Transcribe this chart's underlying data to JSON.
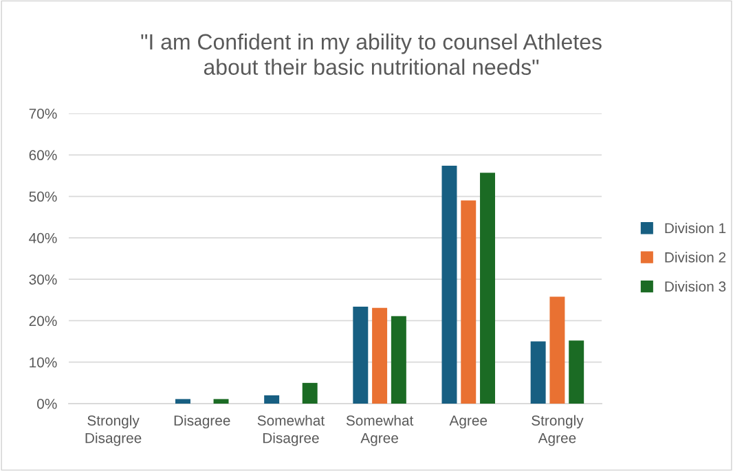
{
  "chart_data": {
    "type": "bar",
    "title": "\"I am Confident in my ability to counsel Athletes\nabout their basic nutritional needs\"",
    "categories": [
      "Strongly\nDisagree",
      "Disagree",
      "Somewhat\nDisagree",
      "Somewhat\nAgree",
      "Agree",
      "Strongly\nAgree"
    ],
    "series": [
      {
        "name": "Division 1",
        "color": "#175f82",
        "values": [
          0,
          1.1,
          2.0,
          23.4,
          57.4,
          15.0
        ]
      },
      {
        "name": "Division 2",
        "color": "#e97132",
        "values": [
          0,
          0,
          0,
          23.1,
          49.0,
          25.8
        ]
      },
      {
        "name": "Division 3",
        "color": "#1b6b24",
        "values": [
          0,
          1.1,
          5.0,
          21.1,
          55.7,
          15.2
        ]
      }
    ],
    "ylim": [
      0,
      70
    ],
    "yticks": [
      {
        "value": 0,
        "label": "0%"
      },
      {
        "value": 10,
        "label": "10%"
      },
      {
        "value": 20,
        "label": "20%"
      },
      {
        "value": 30,
        "label": "30%"
      },
      {
        "value": 40,
        "label": "40%"
      },
      {
        "value": 50,
        "label": "50%"
      },
      {
        "value": 60,
        "label": "60%"
      },
      {
        "value": 70,
        "label": "70%"
      }
    ],
    "grid": "y",
    "legend": "right"
  }
}
